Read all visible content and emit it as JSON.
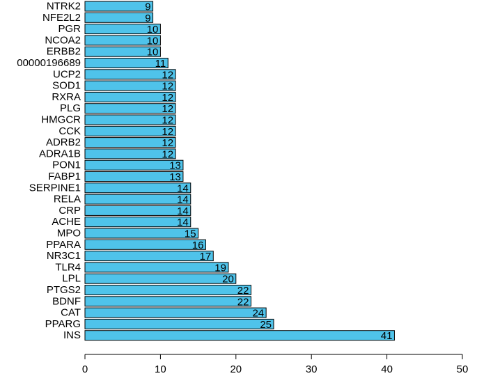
{
  "chart_data": {
    "type": "bar",
    "orientation": "horizontal",
    "categories": [
      "INS",
      "PPARG",
      "CAT",
      "BDNF",
      "PTGS2",
      "LPL",
      "TLR4",
      "NR3C1",
      "PPARA",
      "MPO",
      "ACHE",
      "CRP",
      "RELA",
      "SERPINE1",
      "FABP1",
      "PON1",
      "ADRA1B",
      "ADRB2",
      "CCK",
      "HMGCR",
      "PLG",
      "RXRA",
      "SOD1",
      "UCP2",
      "00000196689",
      "ERBB2",
      "NCOA2",
      "PGR",
      "NFE2L2",
      "NTRK2"
    ],
    "values": [
      41,
      25,
      24,
      22,
      22,
      20,
      19,
      17,
      16,
      15,
      14,
      14,
      14,
      14,
      13,
      13,
      12,
      12,
      12,
      12,
      12,
      12,
      12,
      12,
      11,
      10,
      10,
      10,
      9,
      9
    ],
    "value_labels": [
      "41",
      "25",
      "24",
      "22",
      "22",
      "20",
      "19",
      "17",
      "16",
      "15",
      "14",
      "14",
      "14",
      "14",
      "13",
      "13",
      "12",
      "12",
      "12",
      "12",
      "12",
      "12",
      "12",
      "12",
      "11",
      "10",
      "10",
      "10",
      "9",
      "9"
    ],
    "xlim": [
      0,
      50
    ],
    "x_ticks": [
      "0",
      "10",
      "20",
      "30",
      "40",
      "50"
    ],
    "bar_color": "#4fc3ea",
    "grid": false,
    "title": "",
    "xlabel": "",
    "ylabel": ""
  }
}
